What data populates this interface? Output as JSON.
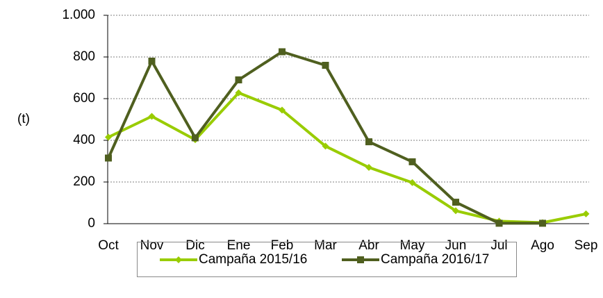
{
  "chart_data": {
    "type": "line",
    "ylabel": "(t)",
    "categories": [
      "Oct",
      "Nov",
      "Dic",
      "Ene",
      "Feb",
      "Mar",
      "Abr",
      "May",
      "Jun",
      "Jul",
      "Ago",
      "Sep"
    ],
    "series": [
      {
        "name": "Campaña 2015/16",
        "color": "#99cc00",
        "marker": "diamond",
        "values": [
          415,
          515,
          403,
          628,
          545,
          372,
          270,
          197,
          62,
          12,
          5,
          47
        ]
      },
      {
        "name": "Campaña 2016/17",
        "color": "#4f5f1f",
        "marker": "square",
        "values": [
          315,
          780,
          412,
          690,
          825,
          760,
          393,
          297,
          103,
          2,
          2,
          null
        ]
      }
    ],
    "ylim": [
      0,
      1000
    ],
    "yticks": [
      0,
      200,
      400,
      600,
      800,
      {
        "value": 1000,
        "label": "1.000"
      }
    ],
    "grid": true,
    "legend": "bottom"
  }
}
